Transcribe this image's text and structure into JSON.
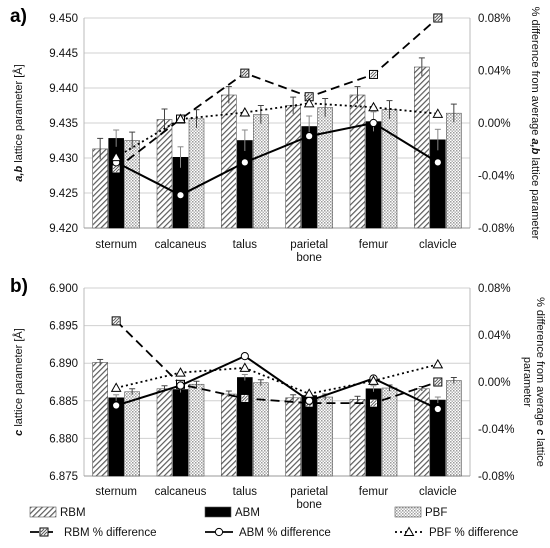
{
  "figure": {
    "legend": [
      {
        "key": "rbm",
        "label": "RBM"
      },
      {
        "key": "abm",
        "label": "ABM"
      },
      {
        "key": "pbf",
        "label": "PBF"
      },
      {
        "key": "rbm_pct",
        "label": "RBM % difference"
      },
      {
        "key": "abm_pct",
        "label": "ABM % difference"
      },
      {
        "key": "pbf_pct",
        "label": "PBF % difference"
      }
    ],
    "colors": {
      "rbm": "#7a7a7a",
      "abm": "#000000",
      "pbf": "#c8c8c8",
      "line": "#000000"
    }
  },
  "chart_data": [
    {
      "panel": "a)",
      "type": "bar",
      "categories": [
        "sternum",
        "calcaneus",
        "talus",
        "parietal bone",
        "femur",
        "clavicle"
      ],
      "category_lines": [
        [
          "sternum"
        ],
        [
          "calcaneus"
        ],
        [
          "talus"
        ],
        [
          "parietal",
          "bone"
        ],
        [
          "femur"
        ],
        [
          "clavicle"
        ]
      ],
      "ylabel_parts": [
        [
          "a,b",
          true
        ],
        [
          " lattice parameter [Å]",
          false
        ]
      ],
      "y2label_parts": [
        [
          "% difference from average ",
          false
        ],
        [
          "a,b",
          true
        ],
        [
          " lattice parameter",
          false
        ]
      ],
      "ylim": [
        9.42,
        9.45
      ],
      "yticks": [
        "9.420",
        "9.425",
        "9.430",
        "9.435",
        "9.440",
        "9.445",
        "9.450"
      ],
      "y2lim": [
        -0.0008,
        0.0008
      ],
      "y2ticks": [
        "-0.08%",
        "-0.04%",
        "0.00%",
        "0.04%",
        "0.08%"
      ],
      "grid": true,
      "series": [
        {
          "name": "RBM",
          "kind": "bar",
          "values": [
            9.4313,
            9.4355,
            9.439,
            9.4375,
            9.439,
            9.443
          ],
          "errors": [
            0.0015,
            0.0015,
            0.0012,
            0.0012,
            0.0012,
            0.0013
          ]
        },
        {
          "name": "ABM",
          "kind": "bar",
          "values": [
            9.4328,
            9.4301,
            9.4325,
            9.4345,
            9.4352,
            9.4326
          ],
          "errors": [
            0.0012,
            0.0015,
            0.0015,
            0.0015,
            0.0014,
            0.0015
          ]
        },
        {
          "name": "PBF",
          "kind": "bar",
          "values": [
            9.4325,
            9.4356,
            9.4362,
            9.4372,
            9.4369,
            9.4364
          ],
          "errors": [
            0.0012,
            0.0013,
            0.0013,
            0.0013,
            0.0013,
            0.0013
          ]
        },
        {
          "name": "RBM % difference",
          "kind": "line",
          "style": "dash",
          "marker": "square",
          "values": [
            -0.00035,
            3e-05,
            0.00038,
            0.0002,
            0.00037,
            0.0008
          ]
        },
        {
          "name": "ABM % difference",
          "kind": "line",
          "style": "solid",
          "marker": "circle",
          "values": [
            -0.0003,
            -0.00055,
            -0.0003,
            -0.0001,
            0.0,
            -0.0003
          ]
        },
        {
          "name": "PBF % difference",
          "kind": "line",
          "style": "dot",
          "marker": "triangle",
          "values": [
            -0.00026,
            3e-05,
            8e-05,
            0.00015,
            0.00012,
            7e-05
          ]
        }
      ]
    },
    {
      "panel": "b)",
      "type": "bar",
      "categories": [
        "sternum",
        "calcaneus",
        "talus",
        "parietal bone",
        "femur",
        "clavicle"
      ],
      "category_lines": [
        [
          "sternum"
        ],
        [
          "calcaneus"
        ],
        [
          "talus"
        ],
        [
          "parietal",
          "bone"
        ],
        [
          "femur"
        ],
        [
          "clavicle"
        ]
      ],
      "ylabel_parts": [
        [
          "c",
          true
        ],
        [
          " lattice parameter [Å]",
          false
        ]
      ],
      "y2label_parts": [
        [
          "% difference from average ",
          false
        ],
        [
          "c",
          true
        ],
        [
          " lattice",
          false
        ],
        [
          "|parameter",
          false
        ]
      ],
      "ylim": [
        6.875,
        6.9
      ],
      "yticks": [
        "6.875",
        "6.880",
        "6.885",
        "6.890",
        "6.895",
        "6.900"
      ],
      "y2lim": [
        -0.0008,
        0.0008
      ],
      "y2ticks": [
        "-0.08%",
        "-0.04%",
        "0.00%",
        "0.04%",
        "0.08%"
      ],
      "grid": true,
      "series": [
        {
          "name": "RBM",
          "kind": "bar",
          "values": [
            6.8901,
            6.8866,
            6.8859,
            6.8854,
            6.8852,
            6.8866
          ],
          "errors": [
            0.0004,
            0.0004,
            0.0004,
            0.0004,
            0.0004,
            0.0003
          ]
        },
        {
          "name": "ABM",
          "kind": "bar",
          "values": [
            6.8854,
            6.8865,
            6.8881,
            6.8857,
            6.8866,
            6.8851
          ],
          "errors": [
            0.0004,
            0.0004,
            0.0004,
            0.0003,
            0.0004,
            0.0004
          ]
        },
        {
          "name": "PBF",
          "kind": "bar",
          "values": [
            6.8862,
            6.8872,
            6.8874,
            6.8855,
            6.8867,
            6.8877
          ],
          "errors": [
            0.0004,
            0.0004,
            0.0004,
            0.0004,
            0.0004,
            0.0004
          ]
        },
        {
          "name": "RBM % difference",
          "kind": "line",
          "style": "dash",
          "marker": "square",
          "values": [
            0.00052,
            -2e-05,
            -0.00014,
            -0.00018,
            -0.00018,
            0.0
          ]
        },
        {
          "name": "ABM % difference",
          "kind": "line",
          "style": "solid",
          "marker": "circle",
          "values": [
            -0.0002,
            -3e-05,
            0.00022,
            -0.00016,
            3e-05,
            -0.00023
          ]
        },
        {
          "name": "PBF % difference",
          "kind": "line",
          "style": "dot",
          "marker": "triangle",
          "values": [
            -5e-05,
            8e-05,
            0.00012,
            -0.0001,
            1e-05,
            0.00015
          ]
        }
      ]
    }
  ]
}
